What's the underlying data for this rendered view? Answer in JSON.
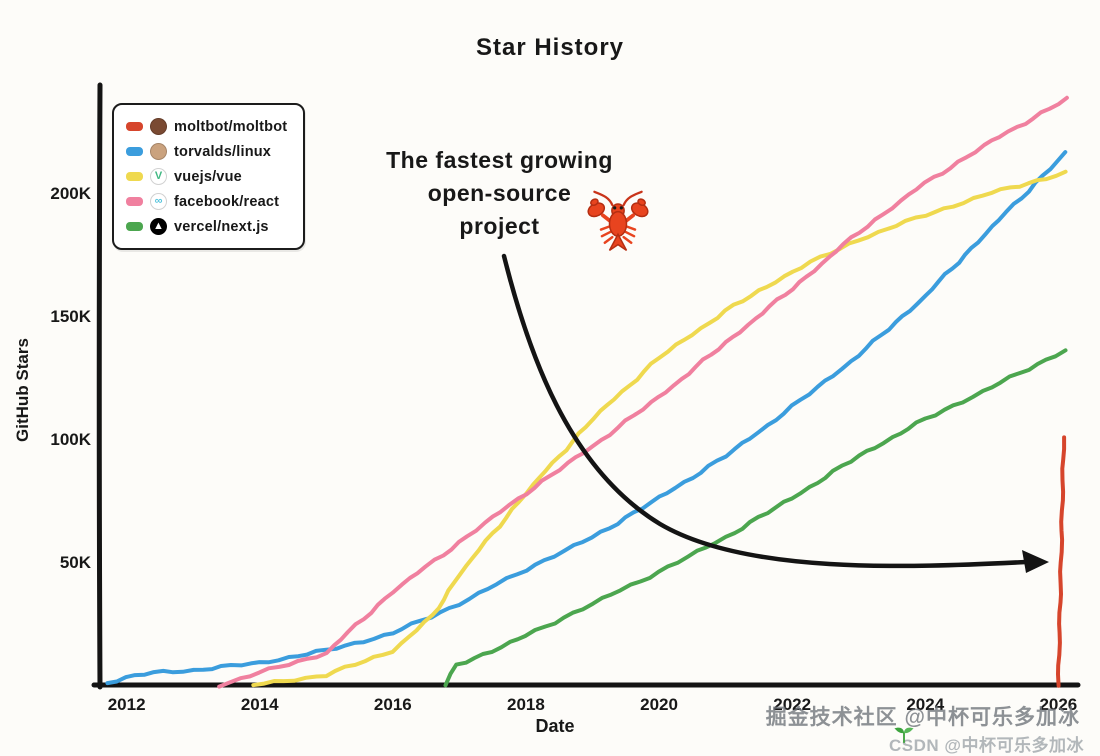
{
  "title": "Star History",
  "axes": {
    "y_label": "GitHub Stars",
    "x_label": "Date"
  },
  "annotation": {
    "line1": "The fastest growing",
    "line2": "open-source",
    "line3": "project",
    "icon": "lobster"
  },
  "legend": {
    "items": [
      {
        "label": "moltbot/moltbot",
        "color": "#d6452c",
        "avatar_bg": "#7a4a32",
        "avatar_fg": "#ffffff",
        "avatar_glyph": ""
      },
      {
        "label": "torvalds/linux",
        "color": "#3b9ddd",
        "avatar_bg": "#caa27e",
        "avatar_fg": "#40332a",
        "avatar_glyph": ""
      },
      {
        "label": "vuejs/vue",
        "color": "#efd94f",
        "avatar_bg": "#ffffff",
        "avatar_fg": "#41b883",
        "avatar_glyph": "V"
      },
      {
        "label": "facebook/react",
        "color": "#f0809f",
        "avatar_bg": "#ffffff",
        "avatar_fg": "#58c4dc",
        "avatar_glyph": "∞"
      },
      {
        "label": "vercel/next.js",
        "color": "#4ca64f",
        "avatar_bg": "#000000",
        "avatar_fg": "#ffffff",
        "avatar_glyph": "▲"
      }
    ]
  },
  "watermarks": {
    "juejin": "掘金技术社区 @中杯可乐多加冰",
    "csdn": "CSDN @中杯可乐多加冰"
  },
  "chart_data": {
    "type": "line",
    "title": "Star History",
    "xlabel": "Date",
    "ylabel": "GitHub Stars",
    "y_unit": "thousands of GitHub stars (K)",
    "x_range": [
      2011.6,
      2026.25
    ],
    "y_range": [
      0,
      243
    ],
    "grid": false,
    "legend_position": "top-left",
    "x_ticks": [
      2012,
      2014,
      2016,
      2018,
      2020,
      2022,
      2024,
      2026
    ],
    "y_ticks": [
      {
        "v": 50,
        "label": "50K"
      },
      {
        "v": 100,
        "label": "100K"
      },
      {
        "v": 150,
        "label": "150K"
      },
      {
        "v": 200,
        "label": "200K"
      }
    ],
    "series": [
      {
        "name": "torvalds/linux",
        "color": "#3b9ddd",
        "points": [
          [
            2011.7,
            1
          ],
          [
            2012,
            3
          ],
          [
            2012.4,
            5
          ],
          [
            2013,
            6
          ],
          [
            2014,
            9
          ],
          [
            2015,
            14
          ],
          [
            2016,
            21
          ],
          [
            2017,
            33
          ],
          [
            2018,
            47
          ],
          [
            2019,
            60
          ],
          [
            2020,
            76
          ],
          [
            2021,
            93
          ],
          [
            2022,
            113
          ],
          [
            2023,
            134
          ],
          [
            2024,
            158
          ],
          [
            2025,
            186
          ],
          [
            2026.1,
            216
          ]
        ]
      },
      {
        "name": "vuejs/vue",
        "color": "#efd94f",
        "points": [
          [
            2013.9,
            0
          ],
          [
            2015,
            4
          ],
          [
            2016,
            14
          ],
          [
            2016.6,
            28
          ],
          [
            2017,
            45
          ],
          [
            2018,
            78
          ],
          [
            2019,
            108
          ],
          [
            2020,
            133
          ],
          [
            2021,
            152
          ],
          [
            2022,
            168
          ],
          [
            2023,
            181
          ],
          [
            2024,
            191
          ],
          [
            2025,
            200
          ],
          [
            2026.1,
            208
          ]
        ]
      },
      {
        "name": "facebook/react",
        "color": "#f0809f",
        "points": [
          [
            2013.4,
            0
          ],
          [
            2014,
            5
          ],
          [
            2015,
            13
          ],
          [
            2016,
            38
          ],
          [
            2017,
            58
          ],
          [
            2018,
            78
          ],
          [
            2019,
            97
          ],
          [
            2020,
            117
          ],
          [
            2021,
            139
          ],
          [
            2022,
            161
          ],
          [
            2023,
            184
          ],
          [
            2024,
            204
          ],
          [
            2025,
            221
          ],
          [
            2026.12,
            238
          ]
        ]
      },
      {
        "name": "vercel/next.js",
        "color": "#4ca64f",
        "points": [
          [
            2016.8,
            0
          ],
          [
            2016.95,
            8
          ],
          [
            2017.5,
            14
          ],
          [
            2018,
            20
          ],
          [
            2019,
            33
          ],
          [
            2020,
            46
          ],
          [
            2021,
            60
          ],
          [
            2022,
            76
          ],
          [
            2023,
            93
          ],
          [
            2024,
            108
          ],
          [
            2025,
            121
          ],
          [
            2026.1,
            136
          ]
        ]
      },
      {
        "name": "moltbot/moltbot",
        "color": "#d6452c",
        "points": [
          [
            2026.0,
            0
          ],
          [
            2026.04,
            50
          ],
          [
            2026.08,
            100
          ]
        ]
      }
    ]
  }
}
